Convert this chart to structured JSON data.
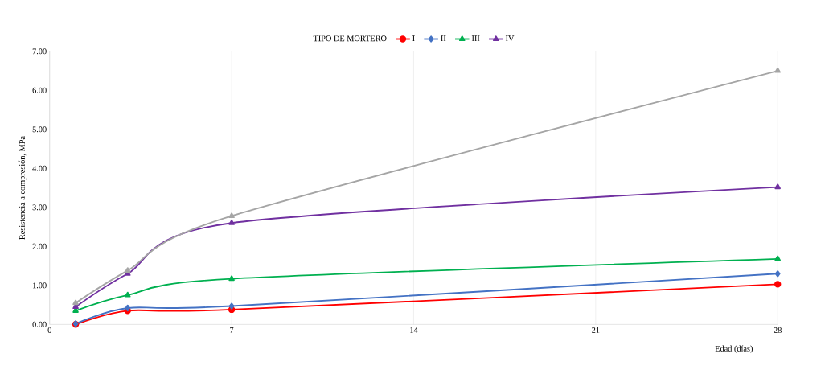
{
  "chart_data": {
    "type": "line",
    "xlabel": "Edad (días)",
    "ylabel": "Resistencia a compresión, MPa",
    "legend_title": "TIPO DE MORTERO",
    "legend": "top",
    "grid": "x",
    "xlim": [
      0,
      28
    ],
    "xticks": [
      0,
      7,
      14,
      21,
      28
    ],
    "ylim": [
      0,
      7
    ],
    "yticks": [
      {
        "value": 0,
        "label": "0.00"
      },
      {
        "value": 1,
        "label": "1.00"
      },
      {
        "value": 2,
        "label": "2.00"
      },
      {
        "value": 3,
        "label": "3.00"
      },
      {
        "value": 4,
        "label": "4.00"
      },
      {
        "value": 5,
        "label": "5.00"
      },
      {
        "value": 6,
        "label": "6.00"
      },
      {
        "value": 7,
        "label": "7.00"
      }
    ],
    "x": [
      1,
      3,
      7,
      28
    ],
    "series": [
      {
        "name": "I",
        "color": "#ff0000",
        "marker": "circle",
        "values": [
          0.0,
          0.35,
          0.38,
          1.03
        ]
      },
      {
        "name": "II",
        "color": "#4472c4",
        "marker": "diamond",
        "values": [
          0.02,
          0.42,
          0.47,
          1.3
        ]
      },
      {
        "name": "III",
        "color": "#00b050",
        "marker": "triangle",
        "values": [
          0.35,
          0.75,
          1.17,
          1.68
        ]
      },
      {
        "name": "IV",
        "color": "#7030a0",
        "marker": "triangle",
        "values": [
          0.45,
          1.3,
          2.6,
          3.52
        ]
      },
      {
        "color": "#a5a5a5",
        "marker": "triangle",
        "values": [
          0.55,
          1.38,
          2.78,
          6.5
        ]
      }
    ]
  }
}
